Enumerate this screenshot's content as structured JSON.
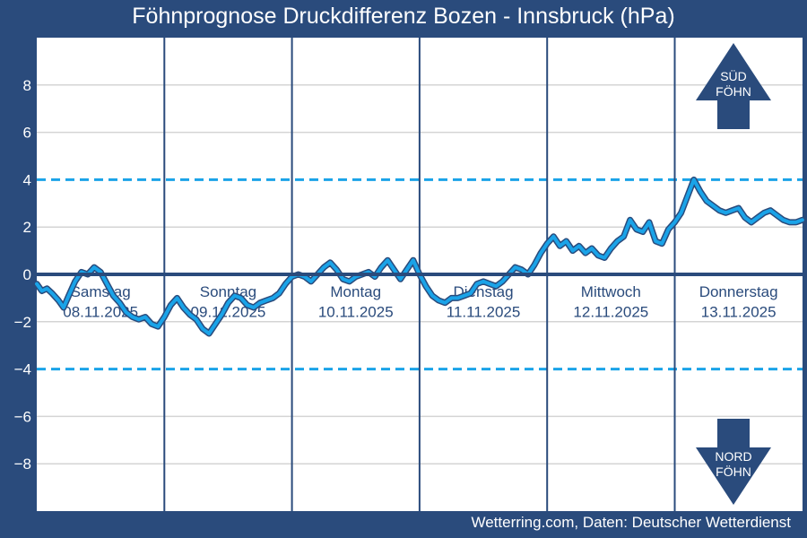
{
  "chart_data": {
    "type": "line",
    "title": "Föhnprognose Druckdifferenz Bozen - Innsbruck (hPa)",
    "ylim": [
      -10,
      10
    ],
    "yticks": [
      8,
      6,
      4,
      2,
      0,
      -2,
      -4,
      -6,
      -8
    ],
    "ytick_labels": [
      "8",
      "6",
      "4",
      "2",
      "0",
      "−2",
      "−4",
      "−6",
      "−8"
    ],
    "thresholds": [
      4,
      -4
    ],
    "zero_line": 0,
    "grid": true,
    "days": [
      {
        "name": "Samstag",
        "date": "08.11.2025"
      },
      {
        "name": "Sonntag",
        "date": "09.11.2025"
      },
      {
        "name": "Montag",
        "date": "10.11.2025"
      },
      {
        "name": "Dienstag",
        "date": "11.11.2025"
      },
      {
        "name": "Mittwoch",
        "date": "12.11.2025"
      },
      {
        "name": "Donnerstag",
        "date": "13.11.2025"
      }
    ],
    "x_unit": "days since start of Samstag 08.11.2025",
    "series": [
      {
        "x": [
          0,
          0.04,
          0.08,
          0.12,
          0.17,
          0.21,
          0.25,
          0.3,
          0.35,
          0.4,
          0.45,
          0.5,
          0.55,
          0.6,
          0.65,
          0.7,
          0.75,
          0.8,
          0.85,
          0.9,
          0.95,
          1.0,
          1.05,
          1.1,
          1.15,
          1.2,
          1.25,
          1.3,
          1.35,
          1.4,
          1.45,
          1.5,
          1.55,
          1.6,
          1.65,
          1.7,
          1.75,
          1.8,
          1.85,
          1.9,
          1.95,
          2.0,
          2.05,
          2.1,
          2.15,
          2.2,
          2.25,
          2.3,
          2.35,
          2.4,
          2.45,
          2.5,
          2.55,
          2.6,
          2.65,
          2.7,
          2.75,
          2.8,
          2.85,
          2.9,
          2.95,
          3.0,
          3.05,
          3.1,
          3.15,
          3.2,
          3.25,
          3.3,
          3.35,
          3.4,
          3.45,
          3.5,
          3.55,
          3.6,
          3.65,
          3.7,
          3.75,
          3.8,
          3.85,
          3.9,
          3.95,
          4.0,
          4.05,
          4.1,
          4.15,
          4.2,
          4.25,
          4.3,
          4.35,
          4.4,
          4.45,
          4.5,
          4.55,
          4.6,
          4.65,
          4.7,
          4.75,
          4.8,
          4.85,
          4.9,
          4.95,
          5.0,
          5.05,
          5.1,
          5.15,
          5.2,
          5.25,
          5.3,
          5.35,
          5.4,
          5.45,
          5.5,
          5.55,
          5.6,
          5.65,
          5.7,
          5.75,
          5.8,
          5.85,
          5.9,
          5.95,
          6.0
        ],
        "y": [
          -0.4,
          -0.7,
          -0.6,
          -0.8,
          -1.1,
          -1.4,
          -0.9,
          -0.3,
          0.1,
          0.0,
          0.3,
          0.1,
          -0.4,
          -0.9,
          -1.2,
          -1.6,
          -1.8,
          -1.9,
          -1.8,
          -2.1,
          -2.2,
          -1.8,
          -1.3,
          -1.0,
          -1.4,
          -1.7,
          -1.9,
          -2.3,
          -2.5,
          -2.1,
          -1.7,
          -1.2,
          -0.9,
          -1.0,
          -1.3,
          -1.4,
          -1.2,
          -1.1,
          -1.0,
          -0.8,
          -0.4,
          -0.1,
          0.0,
          -0.1,
          -0.3,
          0.0,
          0.3,
          0.5,
          0.2,
          -0.2,
          -0.3,
          -0.1,
          0.0,
          0.1,
          -0.1,
          0.3,
          0.6,
          0.2,
          -0.2,
          0.2,
          0.6,
          0.0,
          -0.5,
          -0.9,
          -1.1,
          -1.2,
          -1.0,
          -1.0,
          -0.9,
          -0.8,
          -0.4,
          -0.3,
          -0.4,
          -0.5,
          -0.3,
          0.0,
          0.3,
          0.2,
          0.0,
          0.4,
          0.9,
          1.3,
          1.6,
          1.2,
          1.4,
          1.0,
          1.2,
          0.9,
          1.1,
          0.8,
          0.7,
          1.1,
          1.4,
          1.6,
          2.3,
          1.9,
          1.8,
          2.2,
          1.4,
          1.3,
          1.9,
          2.2,
          2.6,
          3.3,
          4.0,
          3.5,
          3.1,
          2.9,
          2.7,
          2.6,
          2.7,
          2.8,
          2.4,
          2.2,
          2.4,
          2.6,
          2.7,
          2.5,
          2.3,
          2.2,
          2.2,
          2.3
        ]
      }
    ]
  },
  "arrows": {
    "sued": {
      "line1": "SÜD",
      "line2": "FÖHN"
    },
    "nord": {
      "line1": "NORD",
      "line2": "FÖHN"
    }
  },
  "footer": "Wetterring.com, Daten: Deutscher Wetterdienst",
  "colors": {
    "frame": "#2a4b7c",
    "plot_bg": "#ffffff",
    "grid": "#d4d4d4",
    "threshold": "#1aa3e8",
    "zero_line": "#2a4b7c",
    "line": "#1aa3e8",
    "line_outline": "#2a4b7c",
    "arrow": "#2a4b7c",
    "day_label": "#2a4b7c"
  }
}
